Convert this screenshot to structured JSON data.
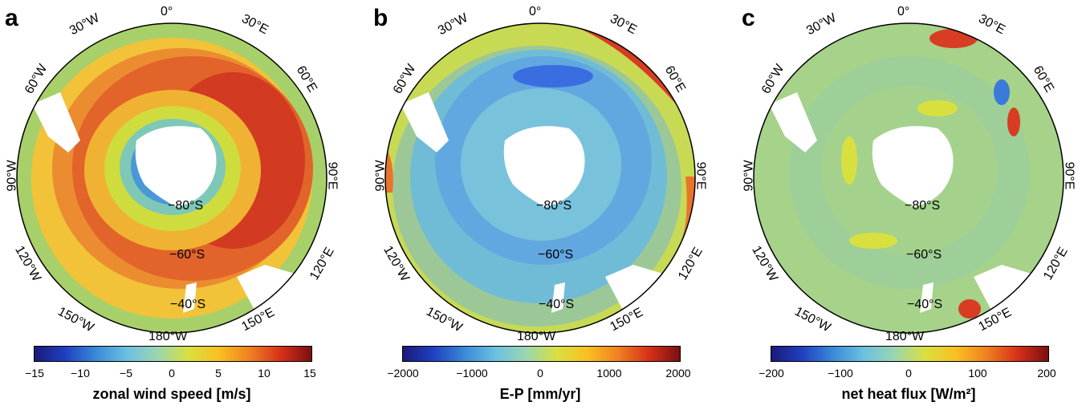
{
  "panels": [
    {
      "letter": "a",
      "cbar_title": "zonal wind speed  [m/s]",
      "ticks": [
        "−15",
        "−10",
        "−5",
        "0",
        "5",
        "10",
        "15"
      ]
    },
    {
      "letter": "b",
      "cbar_title": "E-P  [mm/yr]",
      "ticks": [
        "−2000",
        "−1000",
        "0",
        "1000",
        "2000"
      ]
    },
    {
      "letter": "c",
      "cbar_title": "net heat flux  [W/m²]",
      "ticks": [
        "−200",
        "−100",
        "0",
        "100",
        "200"
      ]
    }
  ],
  "map_labels": {
    "lon_0": "0°",
    "lon_30w": "30°W",
    "lon_30e": "30°E",
    "lon_60w": "60°W",
    "lon_60e": "60°E",
    "lon_90w": "90°W",
    "lon_90e": "90°E",
    "lon_120w": "120°W",
    "lon_120e": "120°E",
    "lon_150w": "150°W",
    "lon_150e": "150°E",
    "lon_180": "180°W",
    "lat_80s": "−80°S",
    "lat_60s": "−60°S",
    "lat_40s": "−40°S"
  },
  "colormap": [
    "#1a1a7a",
    "#2040c0",
    "#3a8ad8",
    "#6cc0e0",
    "#9ad6b0",
    "#d8e040",
    "#f8c020",
    "#f08020",
    "#d83018",
    "#7a1010"
  ]
}
